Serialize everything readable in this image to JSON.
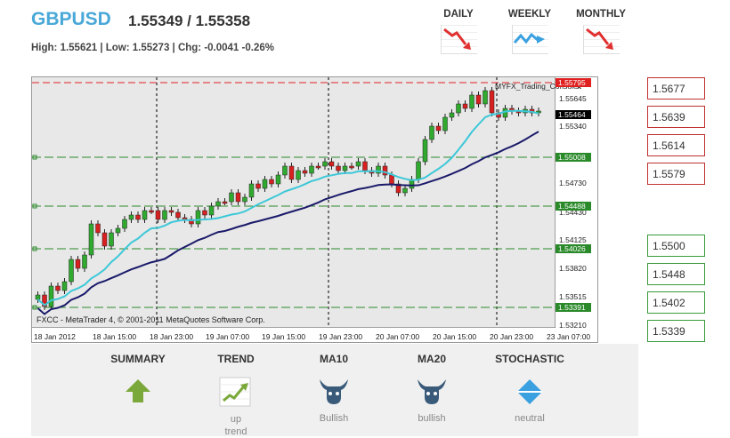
{
  "header": {
    "symbol": "GBPUSD",
    "quote": "1.55349 / 1.55358",
    "stats": "High: 1.55621 | Low: 1.55273 | Chg: -0.0041 -0.26%"
  },
  "timeframes": [
    {
      "label": "DAILY",
      "icon": "trend-down-arrow-icon",
      "color": "#e03030"
    },
    {
      "label": "WEEKLY",
      "icon": "trend-sideways-zigzag-icon",
      "color": "#3aa0e0"
    },
    {
      "label": "MONTHLY",
      "icon": "trend-down-arrow-icon",
      "color": "#e03030"
    }
  ],
  "chart": {
    "console_label": "MYFX_Trading_Console",
    "close_symbol": "x",
    "copyright": "FXCC - MetaTrader 4, © 2001-2011 MetaQuotes Software Corp.",
    "price_labels": [
      "1.55645",
      "1.55340",
      "1.54730",
      "1.54430",
      "1.54125",
      "1.53820",
      "1.53515",
      "1.53210"
    ],
    "highlight_labels": [
      {
        "text": "1.55795",
        "color": "#e02020"
      },
      {
        "text": "1.55464",
        "color": "#000000"
      },
      {
        "text": "1.55008",
        "color": "#2a8a2a"
      },
      {
        "text": "1.54488",
        "color": "#2a8a2a"
      },
      {
        "text": "1.54026",
        "color": "#2a8a2a"
      },
      {
        "text": "1.53391",
        "color": "#2a8a2a"
      }
    ],
    "time_labels": [
      "18 Jan 2012",
      "18 Jan 15:00",
      "18 Jan 23:00",
      "19 Jan 07:00",
      "19 Jan 15:00",
      "19 Jan 23:00",
      "20 Jan 07:00",
      "20 Jan 15:00",
      "20 Jan 23:00",
      "23 Jan 07:00"
    ],
    "colors": {
      "bull": "#2faa2f",
      "bear": "#d82020",
      "ma10": "#3cc8d8",
      "ma20": "#1a1a6a"
    }
  },
  "levels": {
    "resistance": [
      "1.5677",
      "1.5639",
      "1.5614",
      "1.5579"
    ],
    "support": [
      "1.5500",
      "1.5448",
      "1.5402",
      "1.5339"
    ]
  },
  "indicators": [
    {
      "title": "SUMMARY",
      "icon": "up-arrow-icon",
      "value": ""
    },
    {
      "title": "TREND",
      "icon": "uptrend-chart-icon",
      "value": "up trend"
    },
    {
      "title": "MA10",
      "icon": "bull-icon",
      "value": "Bullish"
    },
    {
      "title": "MA20",
      "icon": "bull-icon",
      "value": "bullish"
    },
    {
      "title": "STOCHASTIC",
      "icon": "neutral-diamond-icon",
      "value": "neutral"
    }
  ]
}
